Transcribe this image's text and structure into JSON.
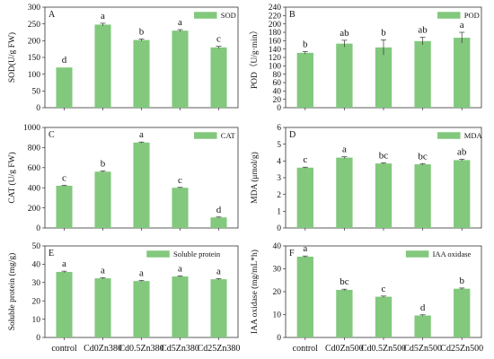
{
  "chart_data": [
    {
      "type": "bar",
      "panel": "A",
      "categories": [
        "control",
        "Cd0Zn380",
        "Cd0.5Zn380",
        "Cd5Zn380",
        "Cd25Zn380"
      ],
      "series": [
        {
          "name": "SOD",
          "values": [
            120,
            248,
            202,
            230,
            180
          ]
        }
      ],
      "errors": [
        0,
        4,
        3,
        3,
        3
      ],
      "letters": [
        "d",
        "a",
        "b",
        "a",
        "c"
      ],
      "ylabel": "SOD(U/g FW)",
      "ylim": [
        0,
        300
      ],
      "yticks": [
        0,
        50,
        100,
        150,
        200,
        250,
        300
      ],
      "xtick_labels": false,
      "legend_position": "top-right",
      "color": "#82c87d"
    },
    {
      "type": "bar",
      "panel": "B",
      "categories": [
        "control",
        "Cd0Zn380",
        "Cd0.5Zn380",
        "Cd5Zn380",
        "Cd25Zn380"
      ],
      "series": [
        {
          "name": "POD",
          "values": [
            131,
            153,
            144,
            159,
            167
          ]
        }
      ],
      "errors": [
        3,
        8,
        18,
        9,
        13
      ],
      "letters": [
        "b",
        "ab",
        "b",
        "ab",
        "a"
      ],
      "ylabel": "POD（U/g·min）",
      "ylim": [
        0,
        240
      ],
      "yticks": [
        0,
        20,
        40,
        60,
        80,
        100,
        120,
        140,
        160,
        180,
        200,
        220,
        240
      ],
      "xtick_labels": false,
      "legend_position": "top-right",
      "color": "#82c87d"
    },
    {
      "type": "bar",
      "panel": "C",
      "categories": [
        "control",
        "Cd0Zn380",
        "Cd0.5Zn380",
        "Cd5Zn380",
        "Cd25Zn380"
      ],
      "series": [
        {
          "name": "CAT",
          "values": [
            420,
            560,
            850,
            400,
            105
          ]
        }
      ],
      "errors": [
        4,
        6,
        5,
        4,
        4
      ],
      "letters": [
        "c",
        "b",
        "a",
        "c",
        "d"
      ],
      "ylabel": "CAT (U/g FW)",
      "ylim": [
        0,
        1000
      ],
      "yticks": [
        0,
        200,
        400,
        600,
        800,
        1000
      ],
      "xtick_labels": false,
      "legend_position": "top-right",
      "color": "#82c87d"
    },
    {
      "type": "bar",
      "panel": "D",
      "categories": [
        "control",
        "Cd0Zn380",
        "Cd0.5Zn380",
        "Cd5Zn380",
        "Cd25Zn380"
      ],
      "series": [
        {
          "name": "MDA",
          "values": [
            3.6,
            4.2,
            3.85,
            3.8,
            4.05
          ]
        }
      ],
      "errors": [
        0.03,
        0.05,
        0.04,
        0.04,
        0.05
      ],
      "letters": [
        "c",
        "a",
        "bc",
        "bc",
        "ab"
      ],
      "ylabel": "MDA (μmol/g)",
      "ylim": [
        0,
        6
      ],
      "yticks": [
        0,
        1,
        2,
        3,
        4,
        5,
        6
      ],
      "xtick_labels": false,
      "legend_position": "top-right",
      "color": "#82c87d"
    },
    {
      "type": "bar",
      "panel": "E",
      "categories": [
        "control",
        "Cd0Zn380",
        "Cd0.5Zn380",
        "Cd5Zn380",
        "Cd25Zn380"
      ],
      "series": [
        {
          "name": "Soluble protein",
          "values": [
            35.8,
            32.3,
            30.8,
            33.3,
            31.8
          ]
        }
      ],
      "errors": [
        0.4,
        0.3,
        0.3,
        0.3,
        0.3
      ],
      "letters": [
        "a",
        "a",
        "a",
        "a",
        "a"
      ],
      "ylabel": "Soluble protein (mg/g)",
      "ylim": [
        0,
        50
      ],
      "yticks": [
        0,
        10,
        20,
        30,
        40,
        50
      ],
      "xtick_labels": true,
      "legend_position": "top-right",
      "color": "#82c87d"
    },
    {
      "type": "bar",
      "panel": "F",
      "categories": [
        "control",
        "Cd0Zn500",
        "Cd0.5Zn500",
        "Cd5Zn500",
        "Cd25Zn500"
      ],
      "series": [
        {
          "name": "IAA oxidase",
          "values": [
            35.3,
            20.8,
            17.8,
            9.6,
            21.3
          ]
        }
      ],
      "errors": [
        0.3,
        0.3,
        0.3,
        0.3,
        0.3
      ],
      "letters": [
        "a",
        "bc",
        "c",
        "d",
        "b"
      ],
      "ylabel": "IAA oxidase (mg/mL*h)",
      "ylim": [
        0,
        40
      ],
      "yticks": [
        0,
        10,
        20,
        30,
        40
      ],
      "xtick_labels": true,
      "legend_position": "top-right",
      "color": "#82c87d"
    }
  ]
}
